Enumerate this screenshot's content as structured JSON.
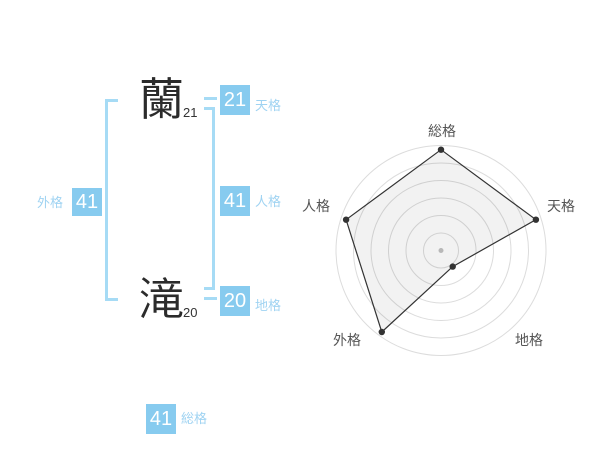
{
  "colors": {
    "badge_blue": "#87CBEF",
    "line_blue": "#A6DBF5",
    "label_blue": "#9FD3F2",
    "text_dark": "#2B2B2B",
    "ring_gray": "#DCDCDC",
    "chart_line": "#333333",
    "chart_label": "#555555",
    "center_dot": "#C2C2C2",
    "chart_fill": "rgba(0,0,0,0.05)"
  },
  "name_analysis": {
    "surname_char": "蘭",
    "surname_strokes": "21",
    "given_char": "滝",
    "given_strokes": "20",
    "tenkaku": {
      "value": "21",
      "label": "天格"
    },
    "jinkaku": {
      "value": "41",
      "label": "人格"
    },
    "chikaku": {
      "value": "20",
      "label": "地格"
    },
    "gaikaku": {
      "value": "41",
      "label": "外格"
    },
    "soukaku": {
      "value": "41",
      "label": "総格"
    }
  },
  "chart_data": {
    "type": "radar",
    "axes": [
      "総格",
      "天格",
      "地格",
      "外格",
      "人格"
    ],
    "values": [
      0.96,
      0.95,
      0.19,
      0.96,
      0.95
    ],
    "scale": "fraction of outer ring radius (0-1)",
    "rings": 6,
    "start_angle_deg": -90,
    "direction": "clockwise",
    "grid": "concentric-circles",
    "legend_position": "none"
  }
}
